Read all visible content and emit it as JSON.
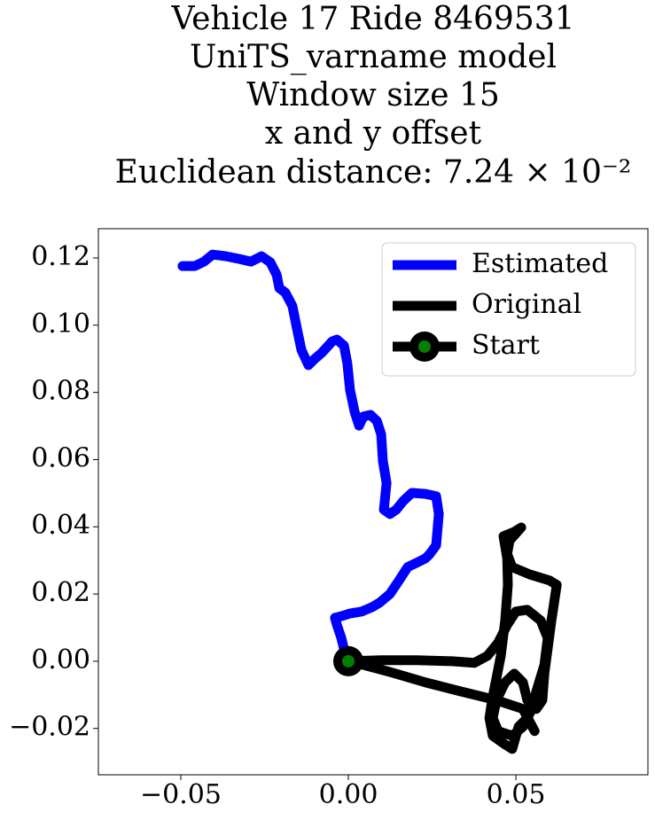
{
  "chart_data": {
    "type": "line",
    "title": [
      "Vehicle 17 Ride 8469531",
      "UniTS_varname model",
      "Window size 15",
      "x and y offset",
      "Euclidean distance: 7.24 × 10⁻²"
    ],
    "series": [
      {
        "name": "Estimated",
        "color": "#0000ff",
        "x": [
          0,
          -0.0008,
          -0.0021,
          -0.0034,
          -0.004,
          -0.0021,
          0.0005,
          0.004,
          0.0071,
          0.0093,
          0.0124,
          0.0151,
          0.0177,
          0.0204,
          0.023,
          0.0243,
          0.0262,
          0.027,
          0.0262,
          0.023,
          0.019,
          0.0164,
          0.0143,
          0.0124,
          0.0106,
          0.0114,
          0.0103,
          0.0098,
          0.0085,
          0.0066,
          0.0045,
          0.0032,
          0.0019,
          0.0005,
          -0.0003,
          -0.0013,
          -0.0034,
          -0.0048,
          -0.0079,
          -0.0101,
          -0.0119,
          -0.014,
          -0.0151,
          -0.0167,
          -0.0188,
          -0.0206,
          -0.0214,
          -0.0233,
          -0.0259,
          -0.0291,
          -0.0325,
          -0.0365,
          -0.0405,
          -0.0431,
          -0.0458,
          -0.0495
        ],
        "values": [
          0,
          0.0016,
          0.0069,
          0.0108,
          0.0129,
          0.0134,
          0.0142,
          0.0148,
          0.0161,
          0.0174,
          0.02,
          0.024,
          0.028,
          0.0293,
          0.0306,
          0.0319,
          0.0345,
          0.0438,
          0.0491,
          0.0498,
          0.0501,
          0.0477,
          0.0451,
          0.0438,
          0.0451,
          0.053,
          0.0596,
          0.0675,
          0.0715,
          0.0733,
          0.0728,
          0.0701,
          0.0741,
          0.0807,
          0.0886,
          0.0939,
          0.0957,
          0.0952,
          0.0918,
          0.0899,
          0.0881,
          0.0926,
          0.0978,
          0.1057,
          0.1097,
          0.111,
          0.115,
          0.1187,
          0.1205,
          0.1189,
          0.1197,
          0.1205,
          0.121,
          0.1189,
          0.1176,
          0.1176
        ]
      },
      {
        "name": "Original",
        "color": "#000000",
        "x": [
          0,
          0.0098,
          0.0204,
          0.031,
          0.0376,
          0.0415,
          0.0447,
          0.0474,
          0.05,
          0.0534,
          0.0574,
          0.0595,
          0.0585,
          0.0561,
          0.0548,
          0.0521,
          0.0489,
          0.0447,
          0.0431,
          0.0442,
          0.0468,
          0.0495,
          0.0521,
          0.0534,
          0.0561,
          0.0579,
          0.0585,
          0.0606,
          0.0622,
          0.0601,
          0.0542,
          0.0489,
          0.0474,
          0.0481,
          0.0516,
          0.0495,
          0.0463,
          0.0474,
          0.0476,
          0.0468,
          0.0455,
          0.0429,
          0.0421,
          0.0431,
          0.0468,
          0.0489,
          0.0508,
          0.0534,
          0.0556,
          0.0521,
          0.0442,
          0.0336,
          0.023,
          0.0124,
          0.0045,
          0
        ],
        "values": [
          0,
          0.0003,
          0.0003,
          0,
          -0.0005,
          0.0016,
          0.0055,
          0.0108,
          0.0148,
          0.0153,
          0.0121,
          0.0069,
          -0.0011,
          -0.009,
          -0.0142,
          -0.0195,
          -0.0222,
          -0.0208,
          -0.0169,
          -0.0116,
          -0.0063,
          -0.0037,
          -0.0063,
          -0.0116,
          -0.0142,
          -0.0116,
          -0.0037,
          0.0121,
          0.0227,
          0.024,
          0.0258,
          0.028,
          0.0319,
          0.0359,
          0.0398,
          0.0385,
          0.0372,
          0.0306,
          0.0227,
          0.0121,
          0.0016,
          -0.0116,
          -0.0169,
          -0.0222,
          -0.0248,
          -0.0261,
          -0.0195,
          -0.0169,
          -0.0208,
          -0.0142,
          -0.0116,
          -0.009,
          -0.0063,
          -0.0032,
          -0.0011,
          0
        ]
      }
    ],
    "start": {
      "name": "Start",
      "x": 0,
      "y": 0,
      "color": "#000000",
      "face": "#008000"
    },
    "xlim": [
      -0.0746,
      0.0894
    ],
    "ylim": [
      -0.0338,
      0.1287
    ],
    "xticks": [
      {
        "value": -0.05,
        "label": "−0.05"
      },
      {
        "value": 0,
        "label": "0.00"
      },
      {
        "value": 0.05,
        "label": "0.05"
      }
    ],
    "yticks": [
      {
        "value": -0.02,
        "label": "−0.02"
      },
      {
        "value": 0,
        "label": "0.00"
      },
      0.02,
      0.04,
      0.06,
      0.08,
      {
        "value": 0.1,
        "label": "0.10"
      },
      0.12
    ],
    "legend": "upper right",
    "grid": false
  }
}
